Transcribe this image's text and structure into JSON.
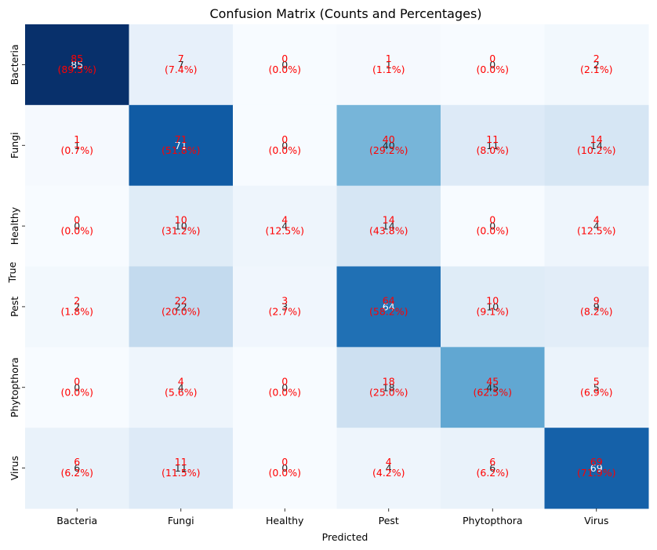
{
  "chart_data": {
    "type": "heatmap",
    "title": "Confusion Matrix (Counts and Percentages)",
    "xlabel": "Predicted",
    "ylabel": "True",
    "x_categories": [
      "Bacteria",
      "Fungi",
      "Healthy",
      "Pest",
      "Phytopthora",
      "Virus"
    ],
    "y_categories": [
      "Bacteria",
      "Fungi",
      "Healthy",
      "Pest",
      "Phytopthora",
      "Virus"
    ],
    "values": [
      [
        85,
        7,
        0,
        1,
        0,
        2
      ],
      [
        1,
        71,
        0,
        40,
        11,
        14
      ],
      [
        0,
        10,
        4,
        14,
        0,
        4
      ],
      [
        2,
        22,
        3,
        64,
        10,
        9
      ],
      [
        0,
        4,
        0,
        18,
        45,
        5
      ],
      [
        6,
        11,
        0,
        4,
        6,
        69
      ]
    ],
    "percent_labels": [
      [
        "(89.5%)",
        "(7.4%)",
        "(0.0%)",
        "(1.1%)",
        "(0.0%)",
        "(2.1%)"
      ],
      [
        "(0.7%)",
        "(51.8%)",
        "(0.0%)",
        "(29.2%)",
        "(8.0%)",
        "(10.2%)"
      ],
      [
        "(0.0%)",
        "(31.2%)",
        "(12.5%)",
        "(43.8%)",
        "(0.0%)",
        "(12.5%)"
      ],
      [
        "(1.8%)",
        "(20.0%)",
        "(2.7%)",
        "(58.2%)",
        "(9.1%)",
        "(8.2%)"
      ],
      [
        "(0.0%)",
        "(5.6%)",
        "(0.0%)",
        "(25.0%)",
        "(62.5%)",
        "(6.9%)"
      ],
      [
        "(6.2%)",
        "(11.5%)",
        "(0.0%)",
        "(4.2%)",
        "(6.2%)",
        "(71.9%)"
      ]
    ],
    "colormap": "Blues",
    "color_low": "#f7fbff",
    "color_high": "#08306b",
    "annotation_color": "#ff0000",
    "colorbar": false
  }
}
